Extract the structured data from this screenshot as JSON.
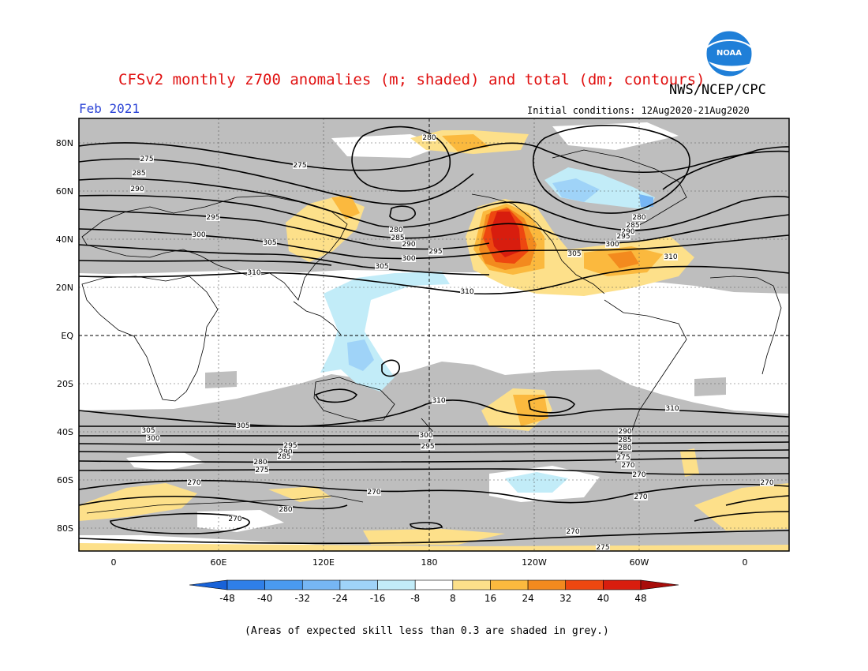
{
  "header": {
    "title": "CFSv2 monthly z700 anomalies (m; shaded) and total (dm; contours)",
    "agency": "NWS/NCEP/CPC",
    "month": "Feb 2021",
    "initial_conditions": "Initial conditions: 12Aug2020-21Aug2020"
  },
  "logo": {
    "text": "NOAA"
  },
  "map": {
    "projection": "cylindrical",
    "lat_labels": [
      "80N",
      "60N",
      "40N",
      "20N",
      "EQ",
      "20S",
      "40S",
      "60S",
      "80S"
    ],
    "lon_labels": [
      "0",
      "60E",
      "120E",
      "180",
      "120W",
      "60W",
      "0"
    ],
    "skill_shade_color": "#bebebe",
    "contour_labels": [
      "280",
      "275",
      "275",
      "285",
      "290",
      "295",
      "300",
      "305",
      "310",
      "280",
      "285",
      "290",
      "300",
      "295",
      "305",
      "310",
      "280",
      "285",
      "290",
      "295",
      "300",
      "305",
      "310",
      "310",
      "310",
      "305",
      "300",
      "295",
      "290",
      "285",
      "280",
      "275",
      "270",
      "305",
      "300",
      "295",
      "290",
      "285",
      "280",
      "275",
      "270",
      "270",
      "270",
      "270",
      "270",
      "275",
      "270",
      "270"
    ]
  },
  "colorbar": {
    "ticks": [
      "-48",
      "-40",
      "-32",
      "-24",
      "-16",
      "-8",
      "8",
      "16",
      "24",
      "32",
      "40",
      "48"
    ],
    "colors": [
      "#1862d8",
      "#2f7fe8",
      "#4a9af0",
      "#76b6f4",
      "#9fd3f8",
      "#c2ecf8",
      "#ffffff",
      "#fde08a",
      "#fbb93e",
      "#f38a1e",
      "#ee4710",
      "#d81d0e",
      "#a80d0a"
    ]
  },
  "footnote": "(Areas of expected skill less than 0.3 are shaded in grey.)"
}
